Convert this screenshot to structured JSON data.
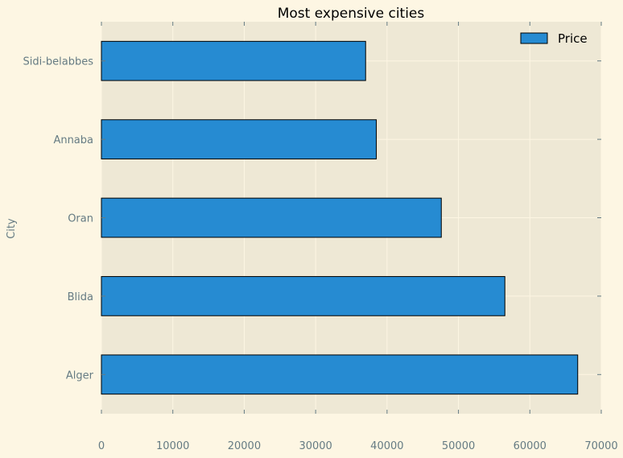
{
  "chart_data": {
    "type": "bar",
    "orientation": "horizontal",
    "title": "Most expensive cities",
    "xlabel": "",
    "ylabel": "City",
    "categories": [
      "Alger",
      "Blida",
      "Oran",
      "Annaba",
      "Sidi-belabbes"
    ],
    "series": [
      {
        "name": "Price",
        "values": [
          66700,
          56500,
          47600,
          38500,
          37000
        ]
      }
    ],
    "xlim": [
      0,
      70000
    ],
    "xticks": [
      "0",
      "10000",
      "20000",
      "30000",
      "40000",
      "50000",
      "60000",
      "70000"
    ],
    "grid": true,
    "legend_position": "top-right",
    "colors": {
      "bar": "#268bd2",
      "bar_edge": "#000000",
      "plot_background": "#eee8d5",
      "figure_background": "#fdf6e3",
      "grid": "#fdf6e3",
      "tick_text": "#657b83",
      "title_text": "#000000"
    }
  }
}
